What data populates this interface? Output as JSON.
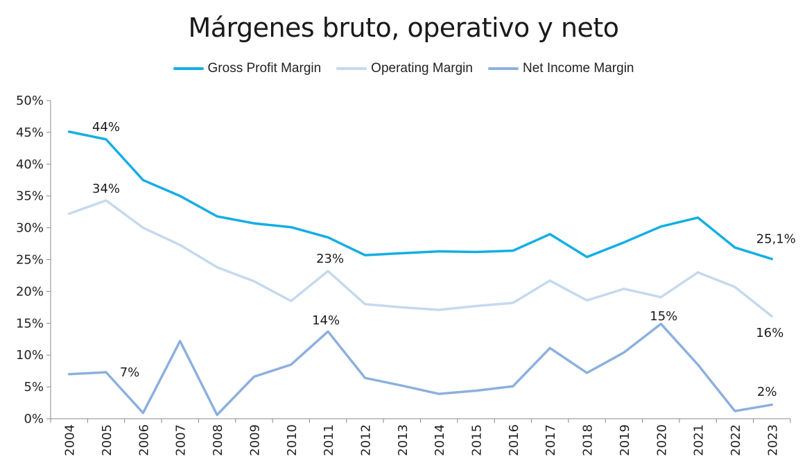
{
  "chart_data": {
    "type": "line",
    "title": "Márgenes bruto, operativo y neto",
    "x": [
      "2004",
      "2005",
      "2006",
      "2007",
      "2008",
      "2009",
      "2010",
      "2011",
      "2012",
      "2013",
      "2014",
      "2015",
      "2016",
      "2017",
      "2018",
      "2019",
      "2020",
      "2021",
      "2022",
      "2023"
    ],
    "series": [
      {
        "name": "Gross Profit Margin",
        "color": "#13aee3",
        "values": [
          45.1,
          43.9,
          37.5,
          35.0,
          31.8,
          30.7,
          30.1,
          28.5,
          25.7,
          26.0,
          26.3,
          26.2,
          26.4,
          29.0,
          25.4,
          27.7,
          30.2,
          31.6,
          26.9,
          25.1
        ]
      },
      {
        "name": "Operating Margin",
        "color": "#c5d9ee",
        "values": [
          32.2,
          34.3,
          30.0,
          27.3,
          23.8,
          21.6,
          18.5,
          23.2,
          18.0,
          17.5,
          17.1,
          17.7,
          18.2,
          21.7,
          18.6,
          20.4,
          19.1,
          23.0,
          20.7,
          16.1
        ]
      },
      {
        "name": "Net Income Margin",
        "color": "#8cb0de",
        "values": [
          7.0,
          7.3,
          0.9,
          12.2,
          0.6,
          6.6,
          8.5,
          13.7,
          6.4,
          5.2,
          3.9,
          4.4,
          5.1,
          11.1,
          7.2,
          10.4,
          14.9,
          8.5,
          1.2,
          2.2
        ]
      }
    ],
    "ylim": [
      0,
      50
    ],
    "yticks": [
      "0%",
      "5%",
      "10%",
      "15%",
      "20%",
      "25%",
      "30%",
      "35%",
      "40%",
      "45%",
      "50%"
    ],
    "legend_position": "top",
    "grid": false,
    "annotations": [
      {
        "series": 0,
        "index": 1,
        "text": "44%"
      },
      {
        "series": 0,
        "index": 19,
        "text": "25,1%"
      },
      {
        "series": 1,
        "index": 1,
        "text": "34%"
      },
      {
        "series": 1,
        "index": 7,
        "text": "23%"
      },
      {
        "series": 1,
        "index": 19,
        "text": "16%"
      },
      {
        "series": 2,
        "index": 1,
        "text": "7%"
      },
      {
        "series": 2,
        "index": 7,
        "text": "14%"
      },
      {
        "series": 2,
        "index": 16,
        "text": "15%"
      },
      {
        "series": 2,
        "index": 19,
        "text": "2%"
      }
    ]
  }
}
